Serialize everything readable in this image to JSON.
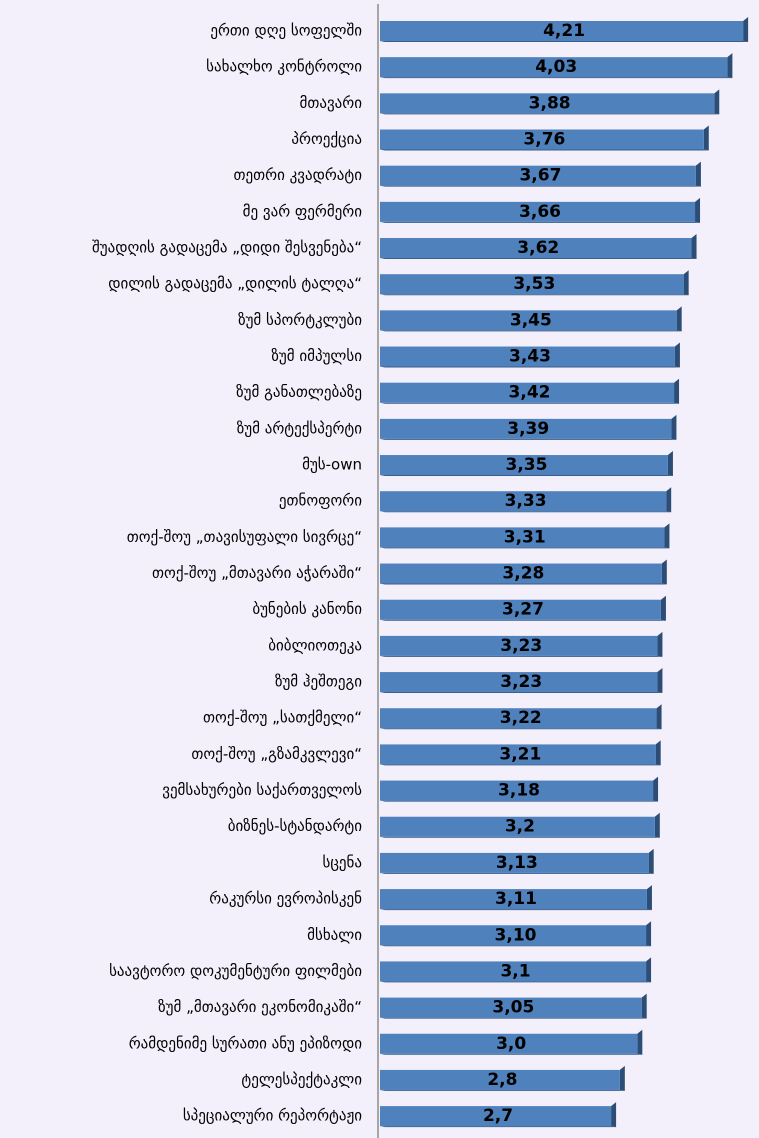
{
  "chart_data": {
    "type": "bar",
    "orientation": "horizontal",
    "color": "#4f81bd",
    "categories": [
      "ერთი დღე სოფელში",
      "სახალხო კონტროლი",
      "მთავარი",
      "პროექცია",
      "თეთრი კვადრატი",
      "მე ვარ ფერმერი",
      "შუადღის გადაცემა „დიდი შესვენება“",
      "დილის გადაცემა „დილის ტალღა“",
      "ზუმ სპორტკლუბი",
      "ზუმ იმპულსი",
      "ზუმ განათლებაზე",
      "ზუმ არტექსპერტი",
      "მუს-own",
      "ეთნოფორი",
      "თოქ-შოუ „თავისუფალი სივრცე“",
      "თოქ-შოუ „მთავარი აჭარაში“",
      "ბუნების კანონი",
      "ბიბლიოთეკა",
      "ზუმ ჰეშთეგი",
      "თოქ-შოუ „სათქმელი“",
      "თოქ-შოუ „გზამკვლევი“",
      "ვემსახურები საქართველოს",
      "ბიზნეს-სტანდარტი",
      "სცენა",
      "რაკურსი ევროპისკენ",
      "მსხალი",
      "საავტორო დოკუმენტური ფილმები",
      "ზუმ „მთავარი ეკონომიკაში“",
      "რამდენიმე სურათი ანუ ეპიზოდი",
      "ტელესპექტაკლი",
      "სპეციალური რეპორტაჟი"
    ],
    "values": [
      4.21,
      4.03,
      3.88,
      3.76,
      3.67,
      3.66,
      3.62,
      3.53,
      3.45,
      3.43,
      3.42,
      3.39,
      3.35,
      3.33,
      3.31,
      3.28,
      3.27,
      3.23,
      3.23,
      3.22,
      3.21,
      3.18,
      3.2,
      3.13,
      3.11,
      3.1,
      3.1,
      3.05,
      3.0,
      2.8,
      2.7
    ],
    "value_labels": [
      "4,21",
      "4,03",
      "3,88",
      "3,76",
      "3,67",
      "3,66",
      "3,62",
      "3,53",
      "3,45",
      "3,43",
      "3,42",
      "3,39",
      "3,35",
      "3,33",
      "3,31",
      "3,28",
      "3,27",
      "3,23",
      "3,23",
      "3,22",
      "3,21",
      "3,18",
      "3,2",
      "3,13",
      "3,11",
      "3,10",
      "3,1",
      "3,05",
      "3,0",
      "2,8",
      "2,7"
    ],
    "xlim": [
      0,
      4.3
    ]
  }
}
